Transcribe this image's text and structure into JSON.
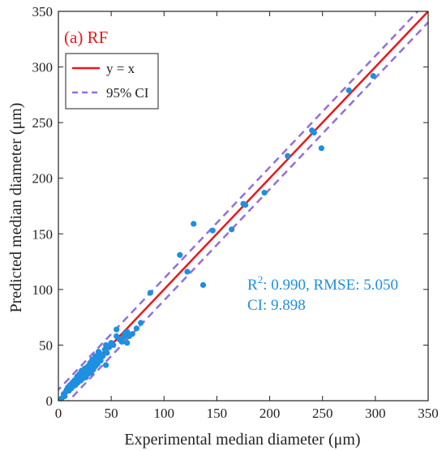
{
  "colors": {
    "identity_line": "#e8191c",
    "ci_line": "#9370db",
    "points": "#1e8fe1",
    "title": "#e8191c",
    "annotation": "#1e8fe1",
    "axis": "#222222"
  },
  "chart_data": {
    "type": "scatter",
    "title": "(a) RF",
    "xlabel": "Experimental median diameter (μm)",
    "ylabel": "Predicted median diameter (μm)",
    "xlim": [
      0,
      350
    ],
    "ylim": [
      0,
      350
    ],
    "xticks": [
      0,
      50,
      100,
      150,
      200,
      250,
      300,
      350
    ],
    "yticks": [
      0,
      50,
      100,
      150,
      200,
      250,
      300,
      350
    ],
    "grid": false,
    "legend_position": "top-left",
    "legend": [
      {
        "label": "y = x",
        "style": "solid",
        "color": "#e8191c"
      },
      {
        "label": "95% CI",
        "style": "dashed",
        "color": "#9370db"
      }
    ],
    "ci_halfwidth": 9.898,
    "annotation": {
      "line1_prefix": "R",
      "line1_sup": "2",
      "line1_rest": ": 0.990, RMSE: 5.050",
      "line2": "CI: 9.898"
    },
    "points": [
      [
        3,
        2
      ],
      [
        5,
        6
      ],
      [
        6,
        4
      ],
      [
        7,
        8
      ],
      [
        8,
        10
      ],
      [
        9,
        12
      ],
      [
        10,
        9
      ],
      [
        11,
        14
      ],
      [
        12,
        11
      ],
      [
        13,
        16
      ],
      [
        14,
        13
      ],
      [
        15,
        18
      ],
      [
        16,
        14
      ],
      [
        17,
        20
      ],
      [
        18,
        16
      ],
      [
        18,
        22
      ],
      [
        19,
        19
      ],
      [
        20,
        24
      ],
      [
        21,
        18
      ],
      [
        22,
        22
      ],
      [
        22,
        27
      ],
      [
        23,
        20
      ],
      [
        24,
        25
      ],
      [
        25,
        23
      ],
      [
        25,
        29
      ],
      [
        26,
        21
      ],
      [
        27,
        27
      ],
      [
        28,
        24
      ],
      [
        28,
        31
      ],
      [
        29,
        26
      ],
      [
        30,
        28
      ],
      [
        30,
        34
      ],
      [
        31,
        25
      ],
      [
        32,
        30
      ],
      [
        32,
        37
      ],
      [
        33,
        28
      ],
      [
        34,
        33
      ],
      [
        35,
        31
      ],
      [
        35,
        40
      ],
      [
        36,
        35
      ],
      [
        37,
        33
      ],
      [
        38,
        38
      ],
      [
        38,
        44
      ],
      [
        40,
        36
      ],
      [
        40,
        42
      ],
      [
        42,
        40
      ],
      [
        44,
        46
      ],
      [
        45,
        32
      ],
      [
        45,
        50
      ],
      [
        46,
        43
      ],
      [
        48,
        48
      ],
      [
        50,
        52
      ],
      [
        52,
        50
      ],
      [
        55,
        58
      ],
      [
        55,
        64
      ],
      [
        58,
        55
      ],
      [
        60,
        53
      ],
      [
        62,
        57
      ],
      [
        63,
        60
      ],
      [
        65,
        52
      ],
      [
        65,
        62
      ],
      [
        67,
        58
      ],
      [
        70,
        60
      ],
      [
        74,
        65
      ],
      [
        78,
        70
      ],
      [
        87,
        97
      ],
      [
        115,
        131
      ],
      [
        122,
        116
      ],
      [
        128,
        159
      ],
      [
        137,
        104
      ],
      [
        146,
        153
      ],
      [
        164,
        154
      ],
      [
        175,
        177
      ],
      [
        177,
        176
      ],
      [
        195,
        187
      ],
      [
        217,
        220
      ],
      [
        240,
        243
      ],
      [
        242,
        241
      ],
      [
        249,
        227
      ],
      [
        275,
        279
      ],
      [
        298,
        292
      ]
    ]
  }
}
